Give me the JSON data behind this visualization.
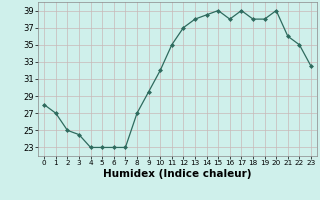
{
  "x": [
    0,
    1,
    2,
    3,
    4,
    5,
    6,
    7,
    8,
    9,
    10,
    11,
    12,
    13,
    14,
    15,
    16,
    17,
    18,
    19,
    20,
    21,
    22,
    23
  ],
  "y": [
    28,
    27,
    25,
    24.5,
    23,
    23,
    23,
    23,
    27,
    29.5,
    32,
    35,
    37,
    38,
    38.5,
    39,
    38,
    39,
    38,
    38,
    39,
    36,
    35,
    32.5
  ],
  "xlabel": "Humidex (Indice chaleur)",
  "xlim": [
    -0.5,
    23.5
  ],
  "ylim": [
    22,
    40
  ],
  "yticks": [
    23,
    25,
    27,
    29,
    31,
    33,
    35,
    37,
    39
  ],
  "xticks": [
    0,
    1,
    2,
    3,
    4,
    5,
    6,
    7,
    8,
    9,
    10,
    11,
    12,
    13,
    14,
    15,
    16,
    17,
    18,
    19,
    20,
    21,
    22,
    23
  ],
  "line_color": "#2e6b5e",
  "marker": "D",
  "marker_size": 2.0,
  "bg_color": "#cff0eb",
  "grid_color": "#c8b8b8",
  "xlabel_fontsize": 7.5,
  "tick_fontsize": 6.0,
  "linewidth": 0.9
}
